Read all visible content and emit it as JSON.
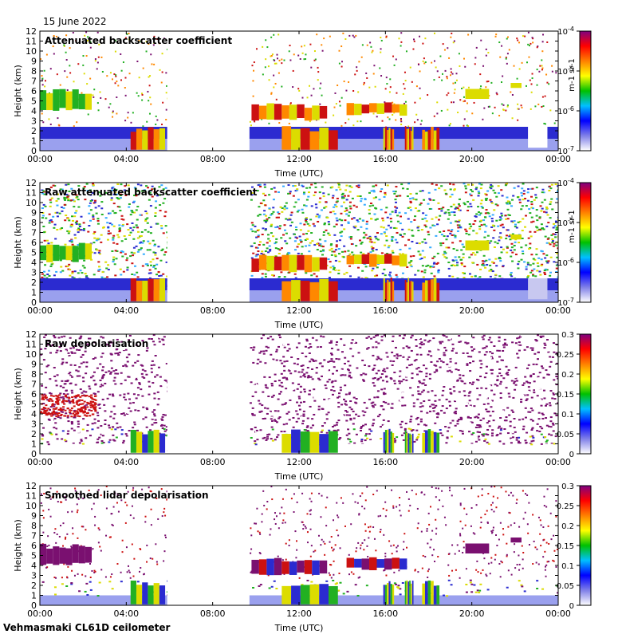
{
  "date_label": "15 June 2022",
  "footer_label": "Vehmasmaki CL61D ceilometer",
  "colors": {
    "blue": "#2b2bd0",
    "light_blue": "#9aa0ee",
    "red": "#cc1111",
    "green": "#22b022",
    "yellow": "#dcdc00",
    "orange": "#ff8800",
    "purple": "#7a1070",
    "white": "#ffffff"
  },
  "chart_data": [
    {
      "type": "heatmap",
      "title": "Attenuated backscatter coefficient",
      "xlabel": "Time (UTC)",
      "ylabel": "Height (km)",
      "xlim": [
        0,
        24
      ],
      "ylim": [
        0,
        12
      ],
      "x_ticks": [
        "00:00",
        "04:00",
        "08:00",
        "12:00",
        "16:00",
        "20:00",
        "00:00"
      ],
      "y_ticks": [
        "0",
        "1",
        "2",
        "3",
        "4",
        "5",
        "6",
        "7",
        "8",
        "9",
        "10",
        "11",
        "12"
      ],
      "data_gap_hours": [
        5.9,
        9.7
      ],
      "colorbar": {
        "scale": "log",
        "ticks": [
          "10-4",
          "10-5",
          "10-6",
          "10-7"
        ],
        "unit": "m-1 sr-1"
      }
    },
    {
      "type": "heatmap",
      "title": "Raw attenuated backscatter coefficient",
      "xlabel": "Time (UTC)",
      "ylabel": "Height (km)",
      "xlim": [
        0,
        24
      ],
      "ylim": [
        0,
        12
      ],
      "x_ticks": [
        "00:00",
        "04:00",
        "08:00",
        "12:00",
        "16:00",
        "20:00",
        "00:00"
      ],
      "y_ticks": [
        "0",
        "1",
        "2",
        "3",
        "4",
        "5",
        "6",
        "7",
        "8",
        "9",
        "10",
        "11",
        "12"
      ],
      "data_gap_hours": [
        5.9,
        9.7
      ],
      "colorbar": {
        "scale": "log",
        "ticks": [
          "10-4",
          "10-5",
          "10-6",
          "10-7"
        ],
        "unit": "m-1 sr-1"
      }
    },
    {
      "type": "heatmap",
      "title": "Raw depolarisation",
      "xlabel": "Time (UTC)",
      "ylabel": "Height (km)",
      "xlim": [
        0,
        24
      ],
      "ylim": [
        0,
        12
      ],
      "x_ticks": [
        "00:00",
        "04:00",
        "08:00",
        "12:00",
        "16:00",
        "20:00",
        "00:00"
      ],
      "y_ticks": [
        "0",
        "1",
        "2",
        "3",
        "4",
        "5",
        "6",
        "7",
        "8",
        "9",
        "10",
        "11",
        "12"
      ],
      "data_gap_hours": [
        5.9,
        9.7
      ],
      "colorbar": {
        "scale": "linear",
        "ticks": [
          "0.3",
          "0.25",
          "0.2",
          "0.15",
          "0.1",
          "0.05",
          "0"
        ],
        "unit": ""
      }
    },
    {
      "type": "heatmap",
      "title": "Smoothed lidar depolarisation",
      "xlabel": "Time (UTC)",
      "ylabel": "Height (km)",
      "xlim": [
        0,
        24
      ],
      "ylim": [
        0,
        12
      ],
      "x_ticks": [
        "00:00",
        "04:00",
        "08:00",
        "12:00",
        "16:00",
        "20:00",
        "00:00"
      ],
      "y_ticks": [
        "0",
        "1",
        "2",
        "3",
        "4",
        "5",
        "6",
        "7",
        "8",
        "9",
        "10",
        "11",
        "12"
      ],
      "data_gap_hours": [
        5.9,
        9.7
      ],
      "colorbar": {
        "scale": "linear",
        "ticks": [
          "0.3",
          "0.25",
          "0.2",
          "0.15",
          "0.1",
          "0.05",
          "0"
        ],
        "unit": ""
      }
    }
  ]
}
